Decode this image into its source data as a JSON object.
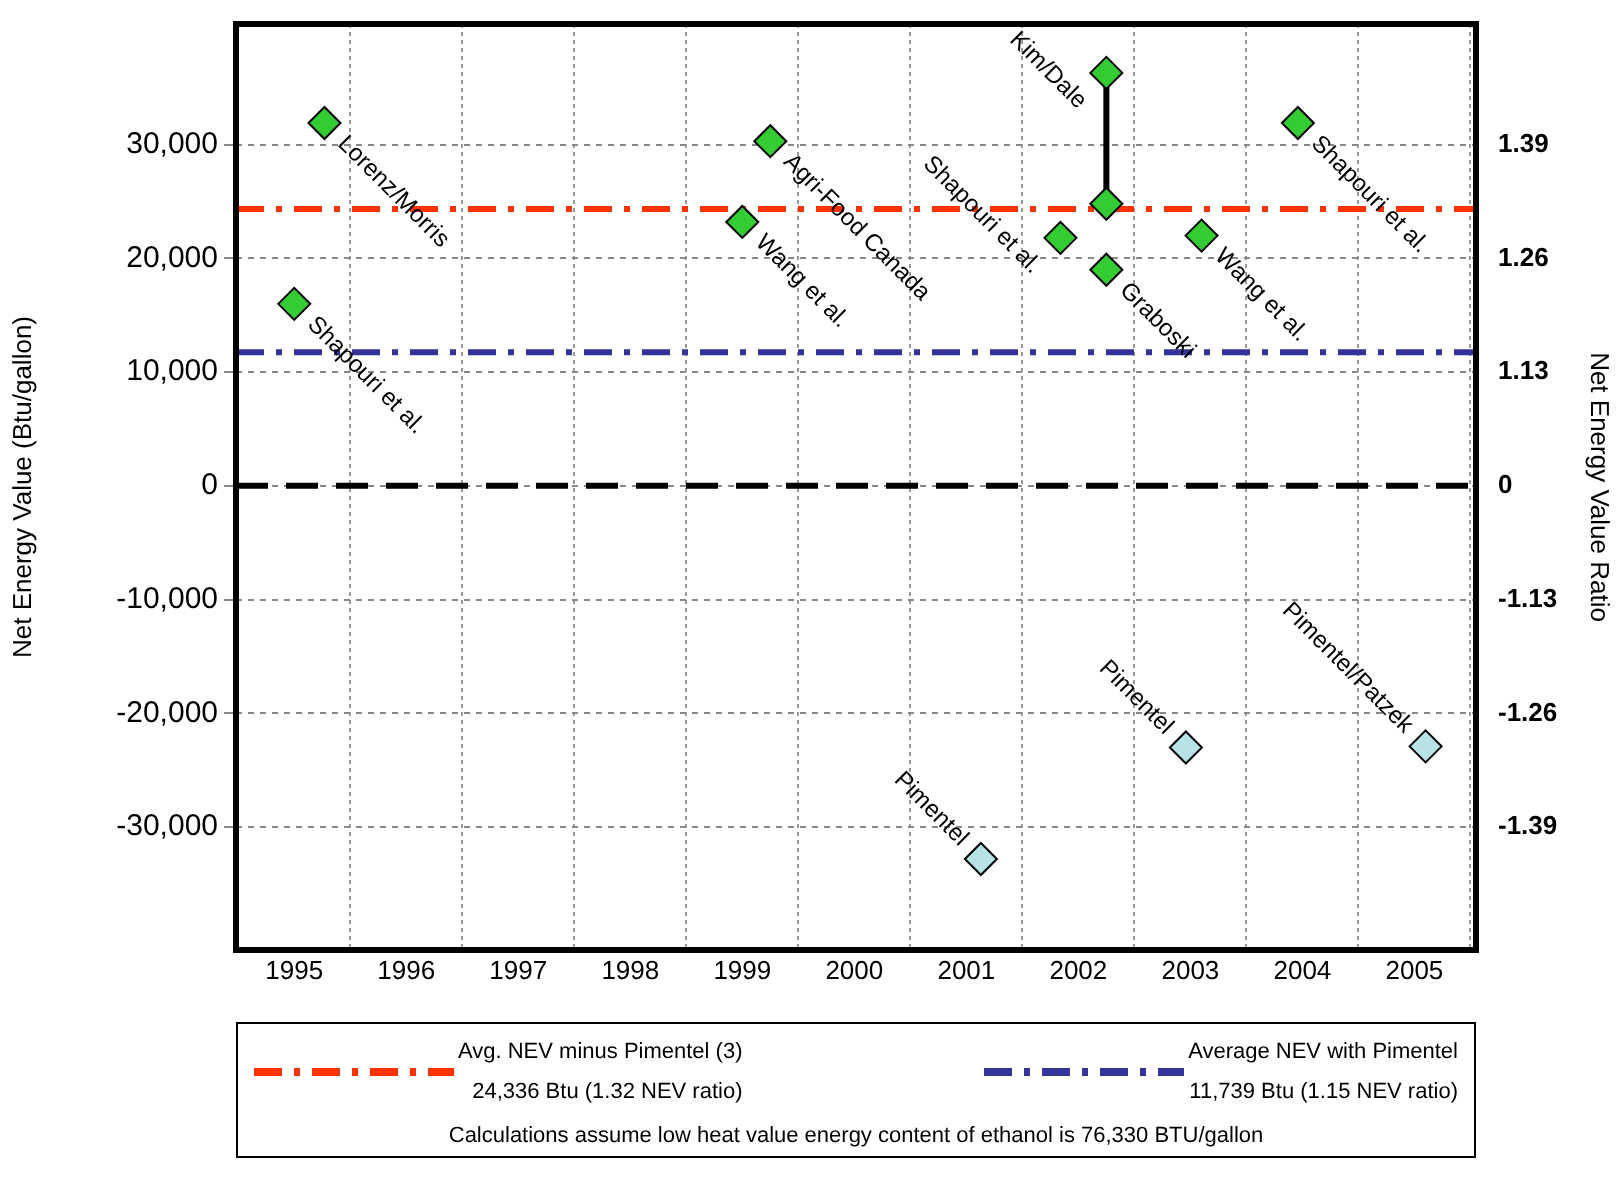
{
  "chart_data": {
    "type": "scatter",
    "ylabel": "Net Energy Value (Btu/gallon)",
    "y2label": "Net Energy Value Ratio",
    "xlim": [
      1994.48,
      2005.55
    ],
    "xticks": [
      1995,
      1996,
      1997,
      1998,
      1999,
      2000,
      2001,
      2002,
      2003,
      2004,
      2005
    ],
    "ylim": [
      -40800,
      40600
    ],
    "yticks": [
      {
        "value": -30000,
        "label": "-30,000"
      },
      {
        "value": -20000,
        "label": "-20,000"
      },
      {
        "value": -10000,
        "label": "-10,000"
      },
      0,
      {
        "value": 10000,
        "label": "10,000"
      },
      {
        "value": 20000,
        "label": "20,000"
      },
      {
        "value": 30000,
        "label": "30,000"
      }
    ],
    "y2_categories": [
      "1.39",
      "1.26",
      "1.13",
      "0",
      "-1.13",
      "-1.26",
      "-1.39"
    ],
    "grid": true,
    "legend": "bottom",
    "marker": "diamond",
    "series": [
      {
        "type": "line",
        "color": "#000000",
        "marker": "none",
        "line_style": "solid",
        "x": [
          2002.25,
          2002.25
        ],
        "values": [
          36300,
          24800
        ]
      },
      {
        "color": "#33cc33",
        "x": [
          1995.27,
          1995.0,
          1999.25,
          1999.0,
          2001.84,
          2002.25,
          2002.25,
          2002.25,
          2003.1,
          2003.96
        ],
        "values": [
          31900,
          16000,
          30300,
          23200,
          21800,
          36300,
          24800,
          19000,
          22000,
          31900
        ]
      },
      {
        "color": "#b7e3e6",
        "x": [
          2001.13,
          2002.96,
          2005.1
        ],
        "values": [
          -32800,
          -23000,
          -22900
        ]
      }
    ],
    "ref_lines": [
      {
        "axis": "y",
        "value": 24336,
        "label": "Avg. NEV minus Pimentel (3)\n24,336 Btu (1.32 NEV ratio)",
        "color": "#ff3300",
        "line_style": "dashdot"
      },
      {
        "axis": "y",
        "value": 11739,
        "label": "Average NEV with Pimentel\n11,739 Btu (1.15 NEV ratio)",
        "color": "#333399",
        "line_style": "dashdot"
      },
      {
        "axis": "y",
        "value": 0,
        "label": null,
        "color": "#000000",
        "line_style": "dashed"
      }
    ],
    "annotations": [
      {
        "text": "Lorenz/Morris",
        "x": 1995.27,
        "y": 31900
      },
      {
        "text": "Shapouri et al.",
        "x": 1995.0,
        "y": 16000
      },
      {
        "text": "Agri-Food Canada",
        "x": 1999.25,
        "y": 30300
      },
      {
        "text": "Wang et al.",
        "x": 1999.0,
        "y": 23200
      },
      {
        "text": "Shapouri et al.",
        "x": 2001.84,
        "y": 21800
      },
      {
        "text": "Kim/Dale",
        "x": 2002.25,
        "y": 36300
      },
      {
        "text": "Graboski",
        "x": 2002.25,
        "y": 19000
      },
      {
        "text": "Wang et al.",
        "x": 2003.1,
        "y": 22000
      },
      {
        "text": "Shapouri et al.",
        "x": 2003.96,
        "y": 31900
      },
      {
        "text": "Pimentel",
        "x": 2001.13,
        "y": -32800
      },
      {
        "text": "Pimentel",
        "x": 2002.96,
        "y": -23000
      },
      {
        "text": "Pimentel/Patzek",
        "x": 2005.1,
        "y": -22900
      },
      "Calculations assume low heat value energy content of ethanol is 76,330 BTU/gallon"
    ]
  }
}
